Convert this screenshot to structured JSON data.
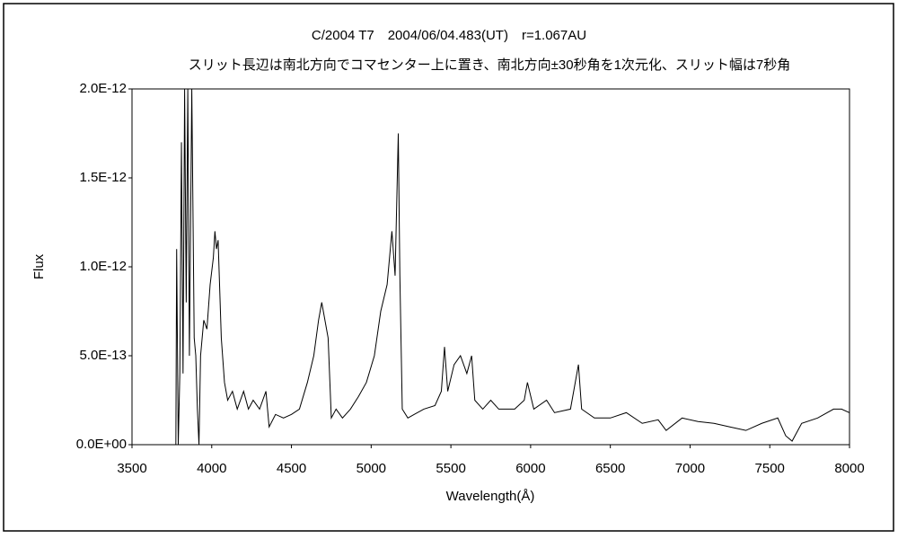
{
  "chart_data": {
    "type": "line",
    "title": "C/2004 T7　2004/06/04.483(UT)　r=1.067AU",
    "subtitle": "スリット長辺は南北方向でコマセンター上に置き、南北方向±30秒角を1次元化、スリット幅は7秒角",
    "x_label": "Wavelength(Å)",
    "y_label": "Flux",
    "xlim": [
      3500,
      8000
    ],
    "xticks": [
      3500,
      4000,
      4500,
      5000,
      5500,
      6000,
      6500,
      7000,
      7500,
      8000
    ],
    "ylim": [
      0,
      2e-12
    ],
    "yticks": [
      {
        "value": 0,
        "label": "0.0E+00"
      },
      {
        "value": 5e-13,
        "label": "5.0E-13"
      },
      {
        "value": 1e-12,
        "label": "1.0E-12"
      },
      {
        "value": 1.5e-12,
        "label": "1.5E-12"
      },
      {
        "value": 2e-12,
        "label": "2.0E-12"
      }
    ],
    "grid": false,
    "series": [
      {
        "color": "#000000",
        "x": [
          3775,
          3780,
          3790,
          3800,
          3810,
          3820,
          3830,
          3840,
          3850,
          3860,
          3875,
          3890,
          3900,
          3910,
          3920,
          3930,
          3950,
          3970,
          3990,
          4010,
          4020,
          4030,
          4040,
          4060,
          4080,
          4100,
          4130,
          4160,
          4200,
          4230,
          4260,
          4300,
          4340,
          4360,
          4400,
          4450,
          4500,
          4550,
          4600,
          4640,
          4670,
          4690,
          4710,
          4730,
          4750,
          4780,
          4820,
          4870,
          4920,
          4970,
          5020,
          5060,
          5100,
          5130,
          5150,
          5170,
          5180,
          5195,
          5230,
          5270,
          5330,
          5400,
          5440,
          5460,
          5480,
          5520,
          5560,
          5600,
          5630,
          5650,
          5700,
          5750,
          5800,
          5850,
          5900,
          5960,
          5980,
          6020,
          6100,
          6150,
          6250,
          6300,
          6320,
          6400,
          6500,
          6600,
          6700,
          6800,
          6850,
          6950,
          7050,
          7150,
          7250,
          7350,
          7450,
          7550,
          7600,
          7640,
          7700,
          7800,
          7900,
          7950,
          8000
        ],
        "values": [
          0,
          1.1e-12,
          0,
          4e-13,
          1.7e-12,
          4e-13,
          2e-12,
          8e-13,
          2e-12,
          5e-13,
          2e-12,
          6e-13,
          5e-13,
          2e-13,
          0,
          5e-13,
          7e-13,
          6.5e-13,
          9e-13,
          1.05e-12,
          1.2e-12,
          1.1e-12,
          1.15e-12,
          6e-13,
          3.5e-13,
          2.5e-13,
          3e-13,
          2e-13,
          3e-13,
          2e-13,
          2.5e-13,
          2e-13,
          3e-13,
          1e-13,
          1.7e-13,
          1.5e-13,
          1.7e-13,
          2e-13,
          3.5e-13,
          5e-13,
          7e-13,
          8e-13,
          7e-13,
          6e-13,
          1.5e-13,
          2e-13,
          1.5e-13,
          2e-13,
          2.7e-13,
          3.5e-13,
          5e-13,
          7.5e-13,
          9e-13,
          1.2e-12,
          9.5e-13,
          1.75e-12,
          9.5e-13,
          2e-13,
          1.5e-13,
          1.7e-13,
          2e-13,
          2.2e-13,
          3e-13,
          5.5e-13,
          3e-13,
          4.5e-13,
          5e-13,
          4e-13,
          5e-13,
          2.5e-13,
          2e-13,
          2.5e-13,
          2e-13,
          2e-13,
          2e-13,
          2.5e-13,
          3.5e-13,
          2e-13,
          2.5e-13,
          1.8e-13,
          2e-13,
          4.5e-13,
          2e-13,
          1.5e-13,
          1.5e-13,
          1.8e-13,
          1.2e-13,
          1.4e-13,
          8e-14,
          1.5e-13,
          1.3e-13,
          1.2e-13,
          1e-13,
          8e-14,
          1.2e-13,
          1.5e-13,
          5e-14,
          2e-14,
          1.2e-13,
          1.5e-13,
          2e-13,
          2e-13,
          1.8e-13
        ]
      }
    ]
  }
}
